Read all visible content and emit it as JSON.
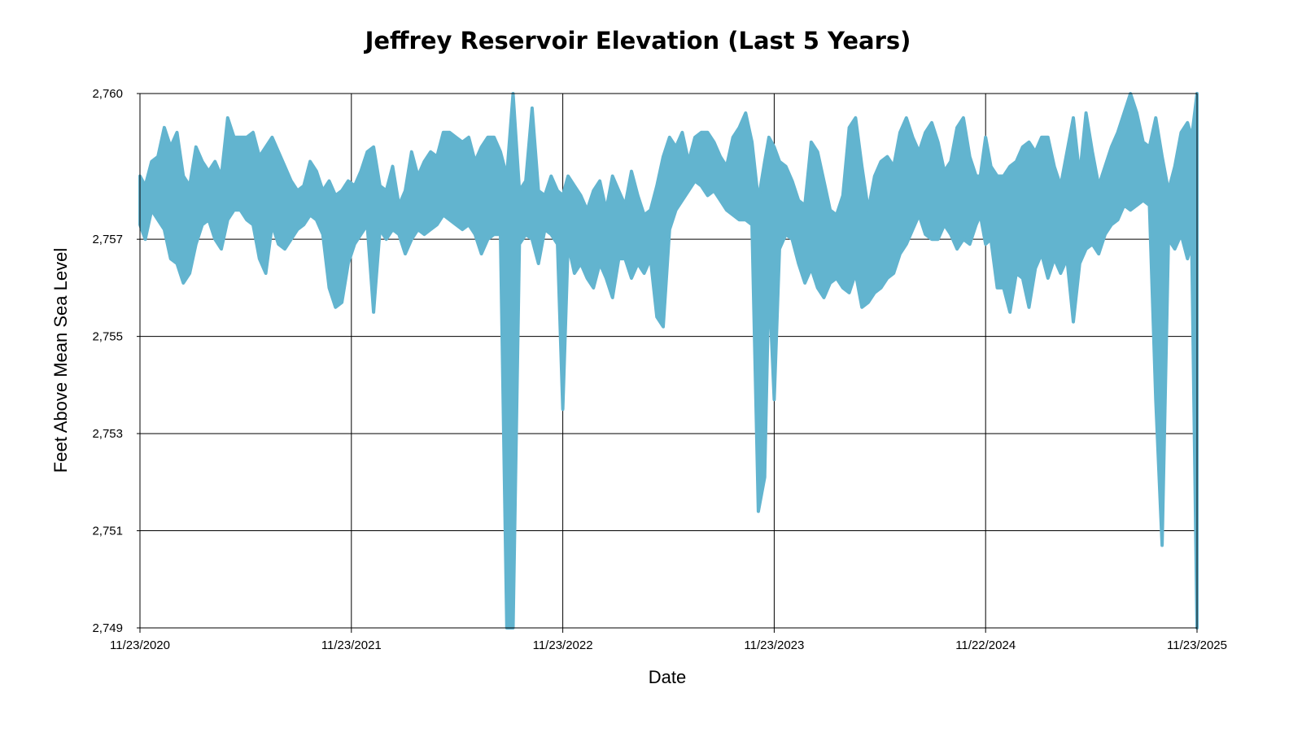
{
  "chart_data": {
    "type": "area",
    "title": "Jeffrey Reservoir Elevation (Last 5 Years)",
    "xlabel": "Date",
    "ylabel": "Feet Above Mean Sea Level",
    "ylim": [
      2749,
      2760
    ],
    "y_ticks": [
      2749,
      2751,
      2753,
      2755,
      2757,
      2760
    ],
    "y_tick_labels": [
      "2,749",
      "2,751",
      "2,753",
      "2,755",
      "2,757",
      "2,760"
    ],
    "x_ticks": [
      2020.895,
      2021.895,
      2022.895,
      2023.895,
      2024.895,
      2025.895
    ],
    "x_tick_labels": [
      "11/23/2020",
      "11/23/2021",
      "11/23/2022",
      "11/23/2023",
      "11/22/2024",
      "11/23/2025"
    ],
    "xlim": [
      2020.895,
      2025.895
    ],
    "grid": true,
    "color": "#62b4cf",
    "series": [
      {
        "x": [
          2020.895,
          2020.92,
          2020.95,
          2020.98,
          2021.01,
          2021.04,
          2021.07,
          2021.1,
          2021.13,
          2021.16,
          2021.19,
          2021.22,
          2021.25,
          2021.28,
          2021.31,
          2021.34,
          2021.37,
          2021.4,
          2021.43,
          2021.46,
          2021.49,
          2021.52,
          2021.55,
          2021.58,
          2021.61,
          2021.64,
          2021.67,
          2021.7,
          2021.73,
          2021.76,
          2021.79,
          2021.82,
          2021.85,
          2021.88,
          2021.91,
          2021.94,
          2021.97,
          2022.0,
          2022.03,
          2022.06,
          2022.09,
          2022.12,
          2022.15,
          2022.18,
          2022.21,
          2022.24,
          2022.27,
          2022.3,
          2022.33,
          2022.36,
          2022.39,
          2022.42,
          2022.45,
          2022.48,
          2022.51,
          2022.54,
          2022.57,
          2022.6,
          2022.63,
          2022.66,
          2022.69,
          2022.72,
          2022.75,
          2022.78,
          2022.81,
          2022.84,
          2022.87,
          2022.895,
          2022.92,
          2022.95,
          2022.98,
          2023.01,
          2023.04,
          2023.07,
          2023.1,
          2023.13,
          2023.16,
          2023.19,
          2023.22,
          2023.25,
          2023.28,
          2023.31,
          2023.34,
          2023.37,
          2023.4,
          2023.43,
          2023.46,
          2023.49,
          2023.52,
          2023.55,
          2023.58,
          2023.61,
          2023.64,
          2023.67,
          2023.7,
          2023.73,
          2023.76,
          2023.79,
          2023.82,
          2023.85,
          2023.87,
          2023.895,
          2023.92,
          2023.95,
          2023.98,
          2024.01,
          2024.04,
          2024.07,
          2024.1,
          2024.13,
          2024.16,
          2024.19,
          2024.22,
          2024.25,
          2024.28,
          2024.31,
          2024.34,
          2024.37,
          2024.4,
          2024.43,
          2024.46,
          2024.49,
          2024.52,
          2024.55,
          2024.58,
          2024.61,
          2024.64,
          2024.67,
          2024.7,
          2024.73,
          2024.76,
          2024.79,
          2024.82,
          2024.85,
          2024.87,
          2024.895,
          2024.92,
          2024.95,
          2024.98,
          2025.01,
          2025.04,
          2025.07,
          2025.1,
          2025.13,
          2025.16,
          2025.19,
          2025.22,
          2025.25,
          2025.28,
          2025.31,
          2025.34,
          2025.37,
          2025.4,
          2025.43,
          2025.46,
          2025.49,
          2025.52,
          2025.55,
          2025.58,
          2025.61,
          2025.64,
          2025.67,
          2025.7,
          2025.73,
          2025.76,
          2025.79,
          2025.82,
          2025.85,
          2025.87,
          2025.895
        ],
        "upper": [
          2758.3,
          2758.1,
          2758.6,
          2758.7,
          2759.3,
          2758.9,
          2759.2,
          2758.3,
          2758.1,
          2758.9,
          2758.6,
          2758.4,
          2758.6,
          2758.3,
          2759.5,
          2759.1,
          2759.1,
          2759.1,
          2759.2,
          2758.7,
          2758.9,
          2759.1,
          2758.8,
          2758.5,
          2758.2,
          2758.0,
          2758.1,
          2758.6,
          2758.4,
          2758.0,
          2758.2,
          2757.9,
          2758.0,
          2758.2,
          2758.1,
          2758.4,
          2758.8,
          2758.9,
          2758.1,
          2758.0,
          2758.5,
          2757.7,
          2758.0,
          2758.8,
          2758.3,
          2758.6,
          2758.8,
          2758.7,
          2759.2,
          2759.2,
          2759.1,
          2759.0,
          2759.1,
          2758.6,
          2758.9,
          2759.1,
          2759.1,
          2758.8,
          2758.3,
          2760.0,
          2758.0,
          2758.2,
          2759.7,
          2758.0,
          2757.9,
          2758.3,
          2758.0,
          2757.9,
          2758.3,
          2758.1,
          2757.9,
          2757.6,
          2758.0,
          2758.2,
          2757.6,
          2758.3,
          2758.0,
          2757.7,
          2758.4,
          2757.9,
          2757.5,
          2757.6,
          2758.1,
          2758.7,
          2759.1,
          2758.9,
          2759.2,
          2758.6,
          2759.1,
          2759.2,
          2759.2,
          2759.0,
          2758.7,
          2758.5,
          2759.1,
          2759.3,
          2759.6,
          2759.0,
          2757.8,
          2758.6,
          2759.1,
          2758.9,
          2758.6,
          2758.5,
          2758.2,
          2757.8,
          2757.7,
          2759.0,
          2758.8,
          2758.2,
          2757.6,
          2757.5,
          2757.9,
          2759.3,
          2759.5,
          2758.5,
          2757.6,
          2758.3,
          2758.6,
          2758.7,
          2758.5,
          2759.2,
          2759.5,
          2759.1,
          2758.8,
          2759.2,
          2759.4,
          2759.0,
          2758.4,
          2758.6,
          2759.3,
          2759.5,
          2758.7,
          2758.3,
          2758.3,
          2759.1,
          2758.5,
          2758.3,
          2758.3,
          2758.5,
          2758.6,
          2758.9,
          2759.0,
          2758.8,
          2759.1,
          2759.1,
          2758.5,
          2758.1,
          2758.8,
          2759.5,
          2758.3,
          2759.6,
          2758.8,
          2758.1,
          2758.5,
          2758.9,
          2759.2,
          2759.6,
          2760.0,
          2759.6,
          2759.0,
          2758.9,
          2759.5,
          2758.7,
          2758.0,
          2758.5,
          2759.2,
          2759.4,
          2759.1,
          2760.0
        ],
        "lower": [
          2757.3,
          2757.0,
          2757.6,
          2757.4,
          2757.2,
          2756.6,
          2756.5,
          2756.1,
          2756.3,
          2756.9,
          2757.3,
          2757.4,
          2757.0,
          2756.8,
          2757.4,
          2757.6,
          2757.6,
          2757.4,
          2757.3,
          2756.6,
          2756.3,
          2757.3,
          2756.9,
          2756.8,
          2757.0,
          2757.2,
          2757.3,
          2757.5,
          2757.4,
          2757.1,
          2756.0,
          2755.6,
          2755.7,
          2756.5,
          2756.9,
          2757.1,
          2757.3,
          2755.5,
          2757.2,
          2757.0,
          2757.2,
          2757.1,
          2756.7,
          2757.0,
          2757.2,
          2757.1,
          2757.2,
          2757.3,
          2757.5,
          2757.4,
          2757.3,
          2757.2,
          2757.3,
          2757.1,
          2756.7,
          2757.0,
          2757.1,
          2757.1,
          2749.0,
          2749.0,
          2756.9,
          2757.1,
          2757.0,
          2756.5,
          2757.2,
          2757.1,
          2756.9,
          2753.5,
          2756.9,
          2756.3,
          2756.5,
          2756.2,
          2756.0,
          2756.5,
          2756.2,
          2755.8,
          2756.6,
          2756.6,
          2756.2,
          2756.5,
          2756.3,
          2756.6,
          2755.4,
          2755.2,
          2757.2,
          2757.6,
          2757.8,
          2758.0,
          2758.2,
          2758.1,
          2757.9,
          2758.0,
          2757.8,
          2757.6,
          2757.5,
          2757.4,
          2757.4,
          2757.3,
          2751.4,
          2752.1,
          2756.2,
          2753.7,
          2756.8,
          2757.1,
          2757.0,
          2756.5,
          2756.1,
          2756.4,
          2756.0,
          2755.8,
          2756.1,
          2756.2,
          2756.0,
          2755.9,
          2756.3,
          2755.6,
          2755.7,
          2755.9,
          2756.0,
          2756.2,
          2756.3,
          2756.7,
          2756.9,
          2757.2,
          2757.5,
          2757.1,
          2757.0,
          2757.0,
          2757.3,
          2757.1,
          2756.8,
          2757.0,
          2756.9,
          2757.3,
          2757.5,
          2756.9,
          2757.0,
          2756.0,
          2756.0,
          2755.5,
          2756.3,
          2756.2,
          2755.6,
          2756.4,
          2756.7,
          2756.2,
          2756.6,
          2756.3,
          2756.6,
          2755.3,
          2756.5,
          2756.8,
          2756.9,
          2756.7,
          2757.1,
          2757.3,
          2757.4,
          2757.7,
          2757.6,
          2757.7,
          2757.8,
          2757.7,
          2753.7,
          2750.7,
          2757.0,
          2756.8,
          2757.1,
          2756.6,
          2756.9,
          2749.0
        ]
      }
    ]
  }
}
